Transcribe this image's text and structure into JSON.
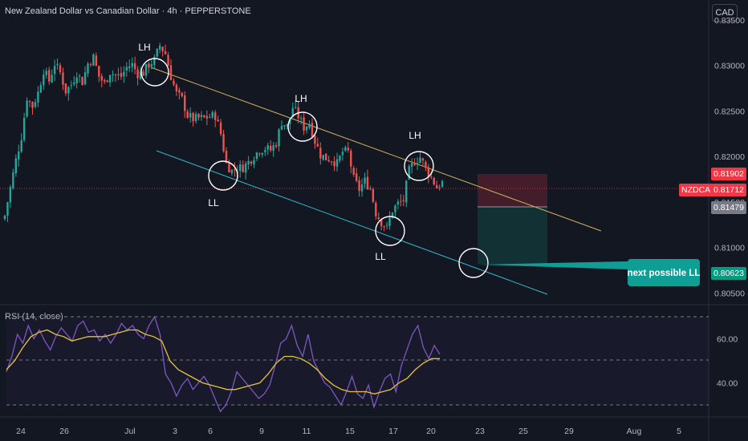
{
  "header": {
    "title": "New Zealand Dollar vs Canadian Dollar · 4h · PEPPERSTONE",
    "currency_button": "CAD"
  },
  "rsi": {
    "label": "RSI (14, close)"
  },
  "price_tags": {
    "symbol": "NZDCAD",
    "current": "0.81712",
    "stop": "0.81902",
    "entry": "0.81479",
    "target": "0.80623"
  },
  "annotation": {
    "callout": "next possible LL"
  },
  "colors": {
    "background": "#131722",
    "up": "#26a69a",
    "down": "#ef5350",
    "resistance": "#d4b25a",
    "support": "#2fb6c9",
    "rsi": "#7e57c2",
    "rsi_ma": "#e6c23b",
    "tag_current": "#f23645",
    "tag_stop": "#f23645",
    "tag_entry": "#787b86",
    "tag_target": "#089981",
    "callout": "#0f9e95"
  },
  "chart_data": [
    {
      "type": "candlestick",
      "symbol": "NZDCAD",
      "timeframe": "4h",
      "ylim": [
        0.8037,
        0.8372
      ],
      "y_ticks": [
        "0.83500",
        "0.83000",
        "0.82500",
        "0.82000",
        "0.81500",
        "0.81000",
        "0.80500"
      ],
      "y_tick_values": [
        0.835,
        0.83,
        0.825,
        0.82,
        0.815,
        0.81,
        0.805
      ],
      "x_ticks": [
        "24",
        "26",
        "Jul",
        "3",
        "6",
        "9",
        "11",
        "15",
        "17",
        "20",
        "23",
        "25",
        "29",
        "Aug",
        "5"
      ],
      "series": [
        {
          "name": "close path",
          "points": [
            [
              0,
              0.8135
            ],
            [
              4,
              0.8196
            ],
            [
              6,
              0.8222
            ],
            [
              8,
              0.8265
            ],
            [
              10,
              0.8255
            ],
            [
              12,
              0.827
            ],
            [
              14,
              0.8295
            ],
            [
              16,
              0.8283
            ],
            [
              18,
              0.8302
            ],
            [
              20,
              0.8292
            ],
            [
              22,
              0.8272
            ],
            [
              24,
              0.8279
            ],
            [
              26,
              0.8292
            ],
            [
              28,
              0.8282
            ],
            [
              30,
              0.8302
            ],
            [
              32,
              0.8309
            ],
            [
              34,
              0.8288
            ],
            [
              36,
              0.828
            ],
            [
              38,
              0.8293
            ],
            [
              40,
              0.8289
            ],
            [
              42,
              0.8288
            ],
            [
              44,
              0.8298
            ],
            [
              46,
              0.8301
            ],
            [
              48,
              0.8291
            ],
            [
              50,
              0.8292
            ],
            [
              52,
              0.8301
            ],
            [
              54,
              0.8306
            ],
            [
              56,
              0.8322
            ],
            [
              58,
              0.8313
            ],
            [
              60,
              0.8288
            ],
            [
              62,
              0.8269
            ],
            [
              64,
              0.8263
            ],
            [
              66,
              0.8245
            ],
            [
              68,
              0.8241
            ],
            [
              70,
              0.8242
            ],
            [
              72,
              0.8242
            ],
            [
              74,
              0.8244
            ],
            [
              76,
              0.8245
            ],
            [
              78,
              0.8225
            ],
            [
              80,
              0.8192
            ],
            [
              82,
              0.8184
            ],
            [
              84,
              0.8187
            ],
            [
              86,
              0.8188
            ],
            [
              88,
              0.8194
            ],
            [
              90,
              0.8201
            ],
            [
              92,
              0.8207
            ],
            [
              94,
              0.8209
            ],
            [
              96,
              0.8207
            ],
            [
              98,
              0.8215
            ],
            [
              100,
              0.8238
            ],
            [
              102,
              0.8233
            ],
            [
              104,
              0.8254
            ],
            [
              106,
              0.8244
            ],
            [
              108,
              0.8232
            ],
            [
              110,
              0.8237
            ],
            [
              112,
              0.8217
            ],
            [
              114,
              0.8202
            ],
            [
              116,
              0.8198
            ],
            [
              118,
              0.8197
            ],
            [
              120,
              0.8192
            ],
            [
              122,
              0.8205
            ],
            [
              124,
              0.8205
            ],
            [
              126,
              0.8175
            ],
            [
              128,
              0.8164
            ],
            [
              130,
              0.8173
            ],
            [
              132,
              0.8165
            ],
            [
              134,
              0.8138
            ],
            [
              136,
              0.8128
            ],
            [
              138,
              0.8121
            ],
            [
              140,
              0.8141
            ],
            [
              142,
              0.8148
            ],
            [
              144,
              0.8152
            ],
            [
              146,
              0.8184
            ],
            [
              148,
              0.8195
            ],
            [
              150,
              0.8199
            ],
            [
              152,
              0.8187
            ],
            [
              154,
              0.8177
            ],
            [
              156,
              0.8166
            ],
            [
              158,
              0.8171
            ]
          ]
        }
      ],
      "annotations": {
        "swing_labels": [
          "LH",
          "LH",
          "LH",
          "LL",
          "LL",
          "LL"
        ],
        "trendlines": [
          "resistance (lower highs)",
          "support (lower lows)"
        ],
        "position": {
          "stop": 0.81902,
          "entry": 0.81479,
          "target": 0.80623
        }
      }
    },
    {
      "type": "line",
      "title": "RSI (14, close)",
      "ylim": [
        25,
        73
      ],
      "y_ticks": [
        "60.00",
        "40.00"
      ],
      "y_tick_values": [
        60,
        40
      ],
      "bands": [
        30,
        50,
        70
      ],
      "series": [
        {
          "name": "RSI",
          "values": [
            45,
            52,
            62,
            58,
            66,
            60,
            64,
            59,
            55,
            61,
            65,
            62,
            59,
            66,
            68,
            63,
            64,
            59,
            62,
            58,
            62,
            67,
            64,
            66,
            62,
            60,
            66,
            70,
            62,
            44,
            40,
            34,
            39,
            42,
            37,
            40,
            43,
            39,
            33,
            27,
            30,
            36,
            45,
            42,
            39,
            36,
            33,
            35,
            39,
            48,
            58,
            60,
            66,
            57,
            52,
            62,
            50,
            45,
            40,
            38,
            34,
            30,
            36,
            43,
            35,
            33,
            39,
            29,
            36,
            42,
            44,
            36,
            48,
            55,
            62,
            66,
            56,
            51,
            57,
            53
          ]
        },
        {
          "name": "RSI-based MA",
          "values": [
            46,
            50,
            56,
            61,
            63,
            64,
            62,
            61,
            59,
            60,
            61,
            61,
            61,
            62,
            63,
            64,
            64,
            62,
            61,
            59,
            50,
            46,
            44,
            42,
            40,
            39,
            38,
            37,
            37,
            38,
            39,
            40,
            44,
            49,
            52,
            52,
            51,
            49,
            46,
            42,
            39,
            37,
            36,
            36,
            36,
            35,
            36,
            37,
            40,
            42,
            46,
            49,
            51,
            51
          ]
        }
      ]
    }
  ]
}
